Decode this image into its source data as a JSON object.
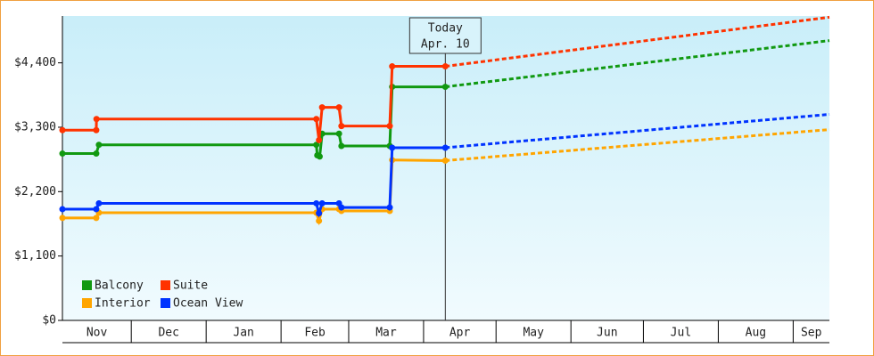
{
  "chart_data": {
    "type": "line",
    "xlim": [
      1.5,
      319
    ],
    "ylim": [
      0,
      5200
    ],
    "yticks": [
      {
        "value": 0,
        "label": "$0"
      },
      {
        "value": 1100,
        "label": "$1,100"
      },
      {
        "value": 2200,
        "label": "$2,200"
      },
      {
        "value": 3300,
        "label": "$3,300"
      },
      {
        "value": 4400,
        "label": "$4,400"
      }
    ],
    "xticks": [
      {
        "value": 0,
        "label": "Nov"
      },
      {
        "value": 30,
        "label": "Dec"
      },
      {
        "value": 61,
        "label": "Jan"
      },
      {
        "value": 92,
        "label": "Feb"
      },
      {
        "value": 120,
        "label": "Mar"
      },
      {
        "value": 151,
        "label": "Apr"
      },
      {
        "value": 181,
        "label": "May"
      },
      {
        "value": 212,
        "label": "Jun"
      },
      {
        "value": 242,
        "label": "Jul"
      },
      {
        "value": 273,
        "label": "Aug"
      },
      {
        "value": 304,
        "label": "Sep"
      }
    ],
    "annotation": {
      "x": 160,
      "lines": [
        "Today",
        "Apr. 10"
      ]
    },
    "legend": "bottom-left",
    "series": [
      {
        "name": "Balcony",
        "color": "#119911",
        "x": [
          1.5,
          15.5,
          16.6,
          106.6,
          107,
          108,
          109,
          116,
          117,
          137,
          138,
          160
        ],
        "values": [
          2850,
          2850,
          3000,
          3000,
          2820,
          2800,
          3190,
          3190,
          2980,
          2980,
          3990,
          3990
        ],
        "forecast_x": [
          160,
          319
        ],
        "forecast_values": [
          3990,
          4780
        ]
      },
      {
        "name": "Suite",
        "color": "#ff3300",
        "x": [
          1.5,
          15.5,
          15.6,
          106.6,
          107.7,
          109,
          116,
          117,
          137,
          138,
          160
        ],
        "values": [
          3250,
          3250,
          3440,
          3440,
          3080,
          3640,
          3640,
          3320,
          3320,
          4340,
          4340
        ],
        "forecast_x": [
          160,
          319
        ],
        "forecast_values": [
          4340,
          5180
        ]
      },
      {
        "name": "Interior",
        "color": "#ffa500",
        "x": [
          1.5,
          15.5,
          16.6,
          106.6,
          107.7,
          109,
          116,
          117,
          137,
          138,
          160
        ],
        "values": [
          1750,
          1750,
          1840,
          1840,
          1700,
          1900,
          1900,
          1870,
          1870,
          2740,
          2730
        ],
        "forecast_x": [
          160,
          319
        ],
        "forecast_values": [
          2730,
          3260
        ]
      },
      {
        "name": "Ocean View",
        "color": "#0033ff",
        "x": [
          1.5,
          15.5,
          16.6,
          106.6,
          107.7,
          109,
          116,
          117,
          137,
          138,
          160
        ],
        "values": [
          1900,
          1900,
          2000,
          2000,
          1830,
          2000,
          2000,
          1930,
          1930,
          2950,
          2950
        ],
        "forecast_x": [
          160,
          319
        ],
        "forecast_values": [
          2950,
          3520
        ]
      }
    ]
  }
}
